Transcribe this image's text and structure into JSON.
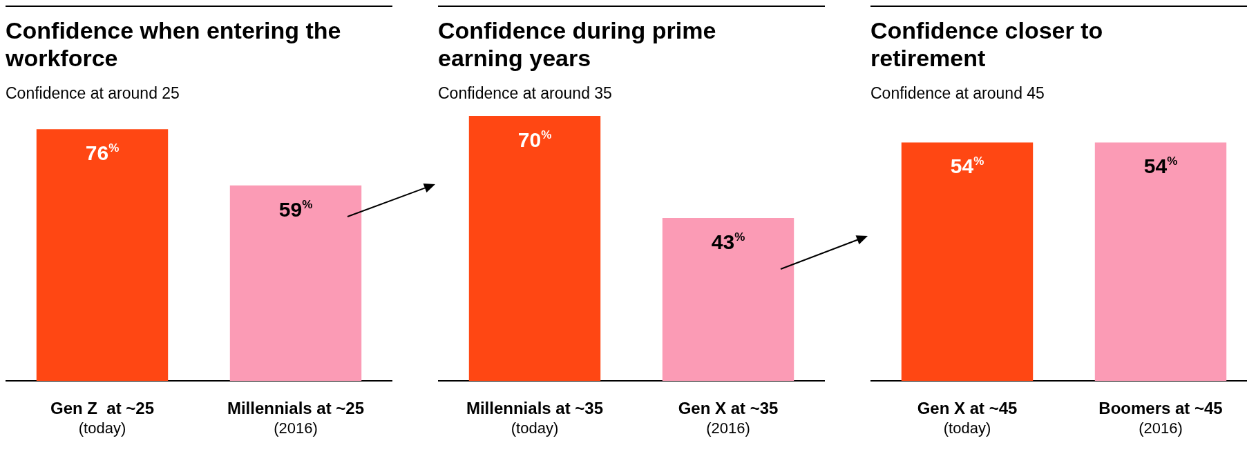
{
  "chart_data": [
    {
      "type": "bar",
      "title": "Confidence when entering the workforce",
      "subtitle": "Confidence at around 25",
      "categories": [
        "Gen Z  at ~25\n(today)",
        "Millennials at ~25\n(2016)"
      ],
      "values": [
        76,
        59
      ],
      "colors": [
        "#ff4713",
        "#fb9bb5"
      ],
      "value_labels": [
        "76%",
        "59%"
      ]
    },
    {
      "type": "bar",
      "title": "Confidence during prime earning years",
      "subtitle": "Confidence at around 35",
      "categories": [
        "Millennials at ~35\n(today)",
        "Gen X at ~35\n(2016)"
      ],
      "values": [
        70,
        43
      ],
      "colors": [
        "#ff4713",
        "#fb9bb5"
      ],
      "value_labels": [
        "70%",
        "43%"
      ]
    },
    {
      "type": "bar",
      "title": "Confidence closer to retirement",
      "subtitle": "Confidence at around 45",
      "categories": [
        "Gen X at ~45\n(today)",
        "Boomers at ~45\n(2016)"
      ],
      "values": [
        54,
        54
      ],
      "colors": [
        "#ff4713",
        "#fb9bb5"
      ],
      "value_labels": [
        "54%",
        "54%"
      ]
    }
  ]
}
